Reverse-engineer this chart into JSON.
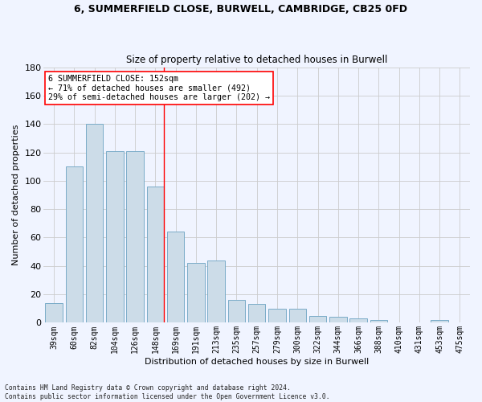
{
  "title1": "6, SUMMERFIELD CLOSE, BURWELL, CAMBRIDGE, CB25 0FD",
  "title2": "Size of property relative to detached houses in Burwell",
  "xlabel": "Distribution of detached houses by size in Burwell",
  "ylabel": "Number of detached properties",
  "categories": [
    "39sqm",
    "60sqm",
    "82sqm",
    "104sqm",
    "126sqm",
    "148sqm",
    "169sqm",
    "191sqm",
    "213sqm",
    "235sqm",
    "257sqm",
    "279sqm",
    "300sqm",
    "322sqm",
    "344sqm",
    "366sqm",
    "388sqm",
    "410sqm",
    "431sqm",
    "453sqm",
    "475sqm"
  ],
  "values": [
    14,
    110,
    140,
    121,
    121,
    96,
    64,
    42,
    44,
    16,
    13,
    10,
    10,
    5,
    4,
    3,
    2,
    0,
    0,
    2,
    0
  ],
  "bar_color": "#ccdce8",
  "bar_edge_color": "#7aacc8",
  "grid_color": "#cccccc",
  "vline_color": "red",
  "annotation_text": "6 SUMMERFIELD CLOSE: 152sqm\n← 71% of detached houses are smaller (492)\n29% of semi-detached houses are larger (202) →",
  "annotation_box_color": "white",
  "annotation_box_edge": "red",
  "ylim": [
    0,
    180
  ],
  "yticks": [
    0,
    20,
    40,
    60,
    80,
    100,
    120,
    140,
    160,
    180
  ],
  "footnote1": "Contains HM Land Registry data © Crown copyright and database right 2024.",
  "footnote2": "Contains public sector information licensed under the Open Government Licence v3.0.",
  "bg_color": "#f0f4ff"
}
